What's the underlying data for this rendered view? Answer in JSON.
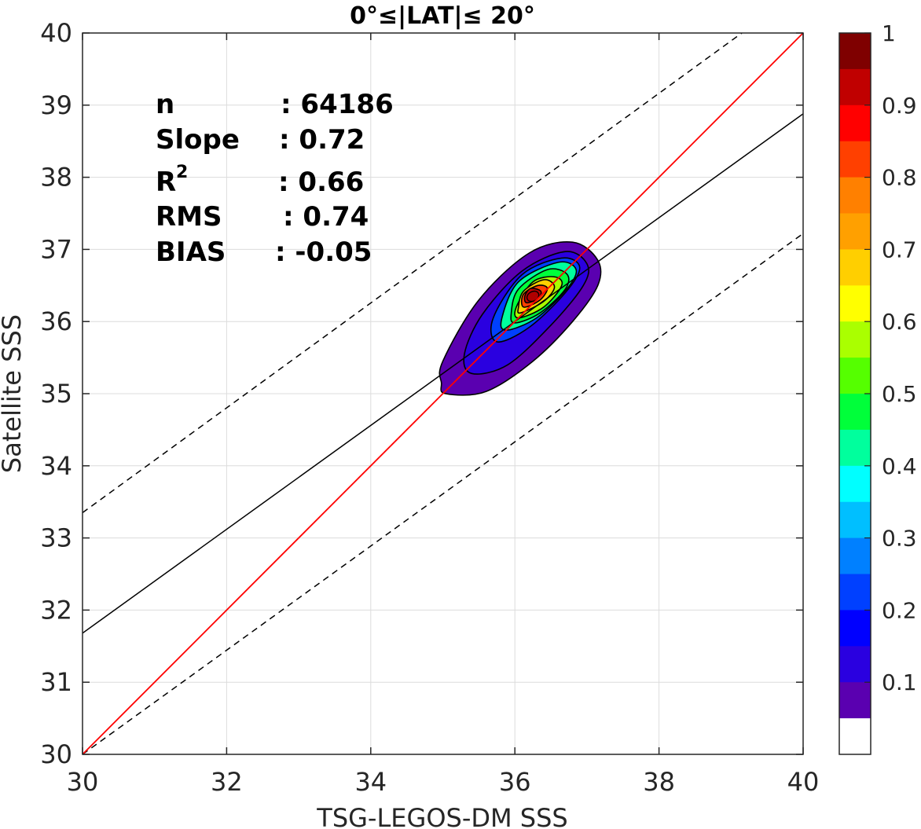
{
  "chart_data": {
    "type": "scatter",
    "subtype": "density-contour",
    "title": "0°≤|LAT|≤ 20°",
    "xlabel": "TSG-LEGOS-DM SSS",
    "ylabel": "Satellite SSS",
    "xlim": [
      30,
      40
    ],
    "ylim": [
      30,
      40
    ],
    "x_ticks": [
      30,
      32,
      34,
      36,
      38,
      40
    ],
    "y_ticks": [
      30,
      31,
      32,
      33,
      34,
      35,
      36,
      37,
      38,
      39,
      40
    ],
    "grid": true,
    "stats": {
      "n": {
        "label": "n",
        "value": ": 64186"
      },
      "slope": {
        "label": "Slope",
        "value": ": 0.72"
      },
      "r2": {
        "label": "R",
        "sup": "2",
        "value": ": 0.66"
      },
      "rms": {
        "label": "RMS",
        "value": ": 0.74"
      },
      "bias": {
        "label": "BIAS",
        "value": ": -0.05"
      }
    },
    "lines": {
      "identity": {
        "x": [
          30,
          40
        ],
        "y": [
          30,
          40
        ],
        "color": "#ff0000"
      },
      "fit": {
        "x": [
          30,
          40
        ],
        "y": [
          31.68,
          38.88
        ],
        "color": "#000000"
      },
      "upper_dashed": {
        "x": [
          30,
          39.15
        ],
        "y": [
          33.35,
          40
        ],
        "color": "#000000"
      },
      "lower_dashed": {
        "x": [
          30,
          40
        ],
        "y": [
          30.0,
          37.22
        ],
        "color": "#000000"
      }
    },
    "density_center": {
      "x": 36.25,
      "y": 36.35
    },
    "contour_levels": [
      {
        "level": 0.05,
        "x": [
          35.04,
          35.6,
          36.25,
          36.8,
          37.15,
          37.15,
          36.8,
          36.2,
          35.5,
          35.0,
          34.98,
          35.04
        ],
        "y": [
          35.0,
          35.03,
          35.45,
          36.0,
          36.5,
          36.85,
          37.1,
          36.95,
          36.3,
          35.45,
          35.15,
          35.0
        ]
      },
      {
        "level": 0.15,
        "x": [
          35.4,
          35.9,
          36.5,
          36.95,
          37.0,
          36.7,
          36.1,
          35.55,
          35.3,
          35.4
        ],
        "y": [
          35.28,
          35.4,
          35.95,
          36.5,
          36.8,
          36.97,
          36.7,
          36.1,
          35.55,
          35.28
        ]
      },
      {
        "level": 0.25,
        "x": [
          35.75,
          36.2,
          36.7,
          36.9,
          36.65,
          36.1,
          35.7,
          35.75
        ],
        "y": [
          35.72,
          35.92,
          36.4,
          36.75,
          36.88,
          36.65,
          36.05,
          35.72
        ]
      },
      {
        "level": 0.4,
        "x": [
          35.88,
          36.3,
          36.72,
          36.85,
          36.6,
          36.05,
          35.82,
          35.88
        ],
        "y": [
          35.88,
          36.05,
          36.45,
          36.72,
          36.82,
          36.55,
          36.05,
          35.88
        ]
      },
      {
        "level": 0.5,
        "x": [
          36.0,
          36.35,
          36.7,
          36.72,
          36.45,
          36.05,
          35.95,
          36.0
        ],
        "y": [
          35.98,
          36.12,
          36.45,
          36.66,
          36.72,
          36.45,
          36.12,
          35.98
        ]
      },
      {
        "level": 0.6,
        "x": [
          36.05,
          36.4,
          36.65,
          36.55,
          36.25,
          36.02,
          36.05
        ],
        "y": [
          36.05,
          36.2,
          36.5,
          36.62,
          36.55,
          36.2,
          36.05
        ]
      },
      {
        "level": 0.7,
        "x": [
          36.08,
          36.4,
          36.55,
          36.4,
          36.12,
          36.05,
          36.08
        ],
        "y": [
          36.12,
          36.28,
          36.48,
          36.58,
          36.42,
          36.2,
          36.12
        ]
      },
      {
        "level": 0.8,
        "x": [
          36.12,
          36.35,
          36.45,
          36.32,
          36.12,
          36.12
        ],
        "y": [
          36.2,
          36.3,
          36.46,
          36.5,
          36.38,
          36.2
        ]
      },
      {
        "level": 0.9,
        "x": [
          36.16,
          36.32,
          36.36,
          36.22,
          36.14,
          36.16
        ],
        "y": [
          36.26,
          36.32,
          36.42,
          36.46,
          36.36,
          36.26
        ]
      }
    ],
    "colorbar": {
      "labels": [
        "1",
        "0.9",
        "0.8",
        "0.7",
        "0.6",
        "0.5",
        "0.4",
        "0.3",
        "0.2",
        "0.1"
      ],
      "label_values": [
        1,
        0.9,
        0.8,
        0.7,
        0.6,
        0.5,
        0.4,
        0.3,
        0.2,
        0.1
      ],
      "colors_top_to_bottom": [
        "#7f0000",
        "#c00000",
        "#ff0000",
        "#ff4000",
        "#ff8000",
        "#ffa000",
        "#ffcf00",
        "#ffff00",
        "#aaff00",
        "#55ff00",
        "#00ff3a",
        "#00ff9d",
        "#00ffff",
        "#00bfff",
        "#0080ff",
        "#0040ff",
        "#0000ff",
        "#2a00e0",
        "#5a00b0",
        "#ffffff"
      ]
    }
  }
}
